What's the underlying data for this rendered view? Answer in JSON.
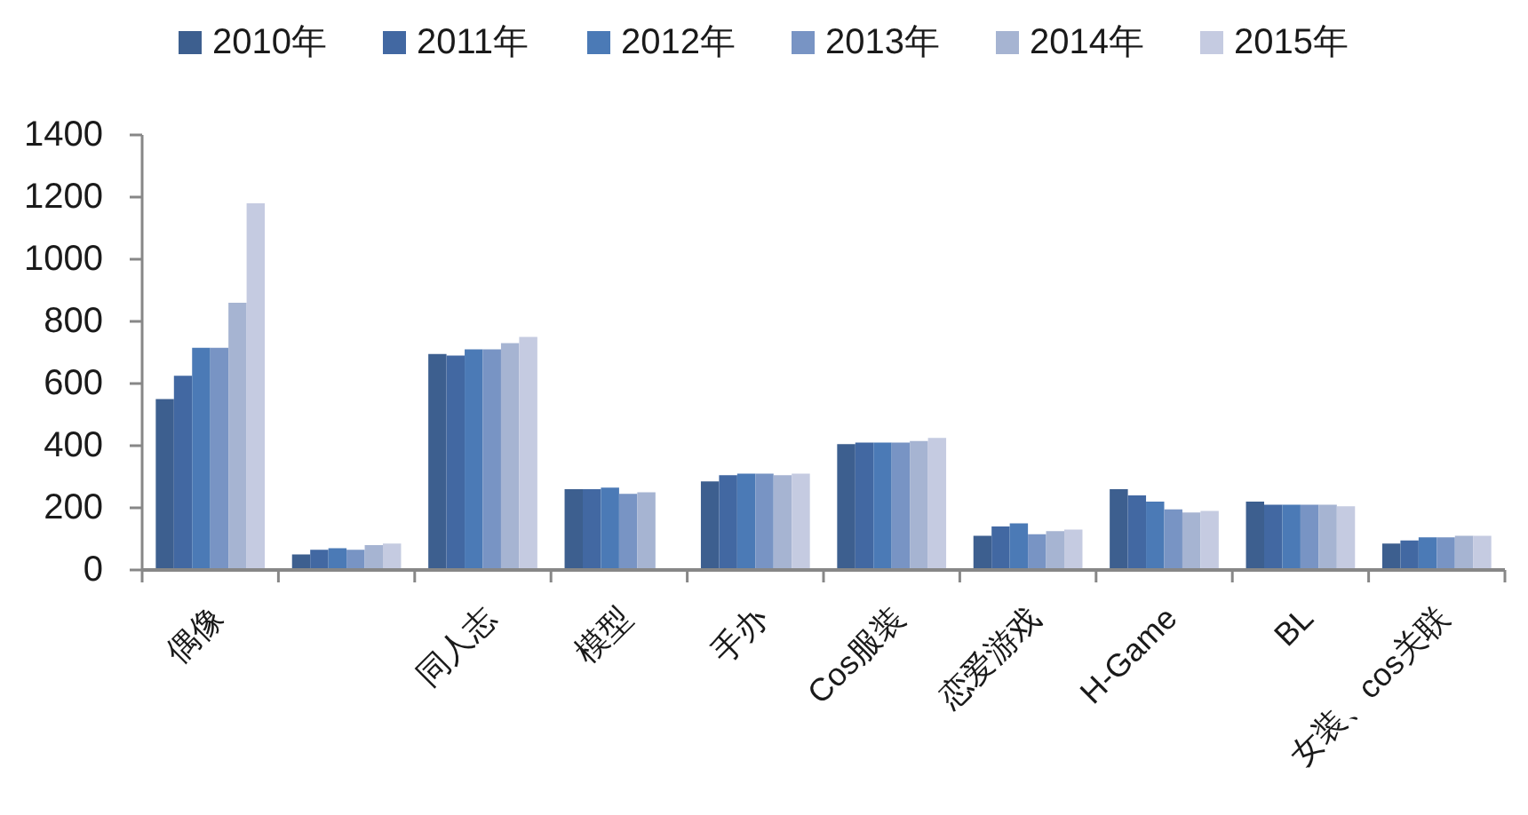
{
  "chart_data": {
    "type": "bar",
    "categories": [
      "偶像",
      null,
      "同人志",
      "模型",
      "手办",
      "Cos服装",
      "恋爱游戏",
      "H-Game",
      "BL",
      "女装、cos关联"
    ],
    "series": [
      {
        "name": "2010年",
        "color": "#3d5f8f",
        "values": [
          550,
          50,
          695,
          260,
          285,
          405,
          110,
          260,
          220,
          85
        ]
      },
      {
        "name": "2011年",
        "color": "#4268a2",
        "values": [
          625,
          65,
          690,
          260,
          305,
          410,
          140,
          240,
          210,
          95
        ]
      },
      {
        "name": "2012年",
        "color": "#4b7ab6",
        "values": [
          715,
          70,
          710,
          265,
          310,
          410,
          150,
          220,
          210,
          105
        ]
      },
      {
        "name": "2013年",
        "color": "#7894c4",
        "values": [
          715,
          65,
          710,
          245,
          310,
          410,
          115,
          195,
          210,
          105
        ]
      },
      {
        "name": "2014年",
        "color": "#a6b4d2",
        "values": [
          860,
          80,
          730,
          250,
          305,
          415,
          125,
          185,
          210,
          110
        ]
      },
      {
        "name": "2015年",
        "color": "#c5cbe1",
        "values": [
          1180,
          85,
          750,
          null,
          310,
          425,
          130,
          190,
          205,
          110
        ]
      }
    ],
    "ylim": [
      0,
      1400
    ],
    "yticks": [
      0,
      200,
      400,
      600,
      800,
      1000,
      1200,
      1400
    ],
    "legend": "top"
  }
}
